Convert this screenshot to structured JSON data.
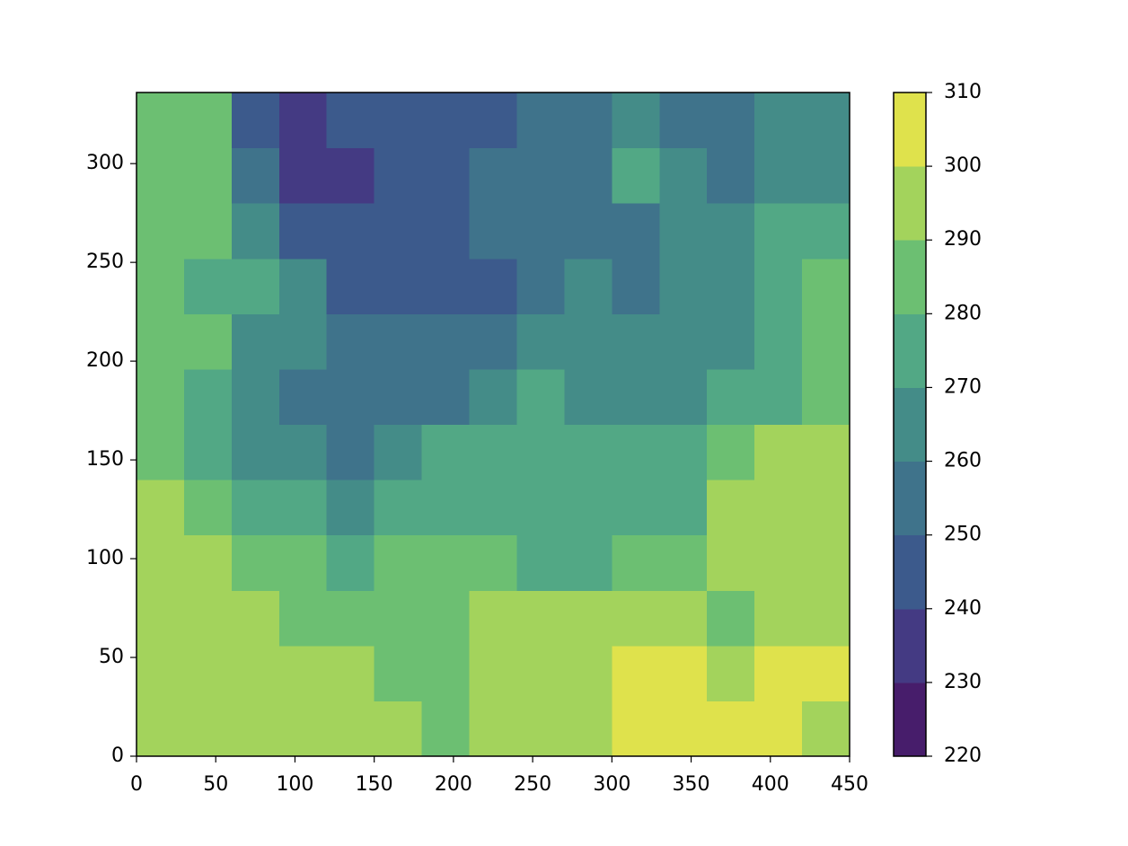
{
  "chart_data": {
    "type": "contourf",
    "x": [
      15,
      45,
      75,
      105,
      135,
      165,
      195,
      225,
      255,
      285,
      315,
      345,
      375,
      405,
      435
    ],
    "y": [
      14,
      42,
      70,
      98,
      126,
      154,
      182,
      210,
      238,
      266,
      294,
      322
    ],
    "z": [
      [
        295,
        295,
        295,
        295,
        295,
        295,
        285,
        295,
        295,
        295,
        305,
        305,
        305,
        305,
        295
      ],
      [
        295,
        295,
        295,
        295,
        295,
        285,
        285,
        295,
        295,
        295,
        305,
        305,
        295,
        305,
        305
      ],
      [
        295,
        295,
        295,
        285,
        285,
        285,
        285,
        295,
        295,
        295,
        295,
        295,
        285,
        295,
        295
      ],
      [
        295,
        295,
        285,
        285,
        275,
        285,
        285,
        285,
        275,
        275,
        285,
        285,
        295,
        295,
        295
      ],
      [
        295,
        285,
        275,
        275,
        265,
        275,
        275,
        275,
        275,
        275,
        275,
        275,
        295,
        295,
        295
      ],
      [
        285,
        275,
        265,
        265,
        255,
        265,
        275,
        275,
        275,
        275,
        275,
        275,
        285,
        295,
        295
      ],
      [
        285,
        275,
        265,
        255,
        255,
        255,
        255,
        265,
        275,
        265,
        265,
        265,
        275,
        275,
        285
      ],
      [
        285,
        285,
        265,
        265,
        255,
        255,
        255,
        255,
        265,
        265,
        265,
        265,
        265,
        275,
        285
      ],
      [
        285,
        275,
        275,
        265,
        245,
        245,
        245,
        245,
        255,
        265,
        255,
        265,
        265,
        275,
        285
      ],
      [
        285,
        285,
        265,
        245,
        245,
        245,
        245,
        255,
        255,
        255,
        255,
        265,
        265,
        275,
        275
      ],
      [
        285,
        285,
        255,
        235,
        235,
        245,
        245,
        255,
        255,
        255,
        275,
        265,
        255,
        265,
        265
      ],
      [
        285,
        285,
        245,
        235,
        245,
        245,
        245,
        245,
        255,
        255,
        265,
        255,
        255,
        265,
        265
      ]
    ],
    "levels": [
      220,
      230,
      240,
      250,
      260,
      270,
      280,
      290,
      300,
      310
    ],
    "colors": [
      "#471d6b",
      "#443a83",
      "#3c5a8c",
      "#3f738b",
      "#448c88",
      "#52a885",
      "#6cbf72",
      "#a3d35c",
      "#dfe24c"
    ],
    "xlim": [
      0,
      450
    ],
    "xticks": [
      0,
      50,
      100,
      150,
      200,
      250,
      300,
      350,
      400,
      450
    ],
    "ylim": [
      0,
      336
    ],
    "yticks": [
      0,
      50,
      100,
      150,
      200,
      250,
      300
    ]
  }
}
